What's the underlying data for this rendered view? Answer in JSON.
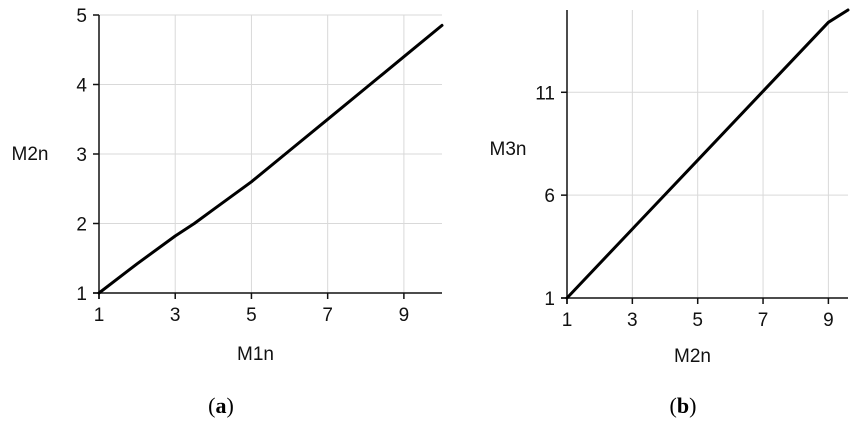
{
  "figure": {
    "captions": [
      {
        "open": "(",
        "letter": "a",
        "close": ")"
      },
      {
        "open": "(",
        "letter": "b",
        "close": ")"
      }
    ]
  },
  "colors": {
    "series": "#000000",
    "grid": "#d9d9d9",
    "axis": "#111111"
  },
  "chart_data": [
    {
      "type": "line",
      "title": "",
      "xlabel": "M1n",
      "ylabel": "M2n",
      "xlim": [
        1,
        10
      ],
      "ylim": [
        1,
        5
      ],
      "x_ticks": [
        1,
        3,
        5,
        7,
        9
      ],
      "y_ticks": [
        1,
        2,
        3,
        4,
        5
      ],
      "grid": true,
      "legend": "none",
      "series": [
        {
          "x": [
            1,
            2,
            3,
            3.5,
            4,
            5,
            6,
            7,
            8,
            9,
            10
          ],
          "y": [
            1.0,
            1.42,
            1.82,
            2.0,
            2.2,
            2.6,
            3.05,
            3.5,
            3.95,
            4.4,
            4.85
          ]
        }
      ]
    },
    {
      "type": "line",
      "title": "",
      "xlabel": "M2n",
      "ylabel": "M3n",
      "xlim": [
        1,
        9.6
      ],
      "ylim": [
        1,
        15
      ],
      "x_ticks": [
        1,
        3,
        5,
        7,
        9
      ],
      "y_ticks": [
        1,
        6,
        11
      ],
      "grid": true,
      "legend": "none",
      "series": [
        {
          "x": [
            1,
            3,
            5,
            7,
            9,
            9.6
          ],
          "y": [
            1.0,
            4.35,
            7.7,
            11.05,
            14.4,
            15.0
          ]
        }
      ]
    }
  ]
}
